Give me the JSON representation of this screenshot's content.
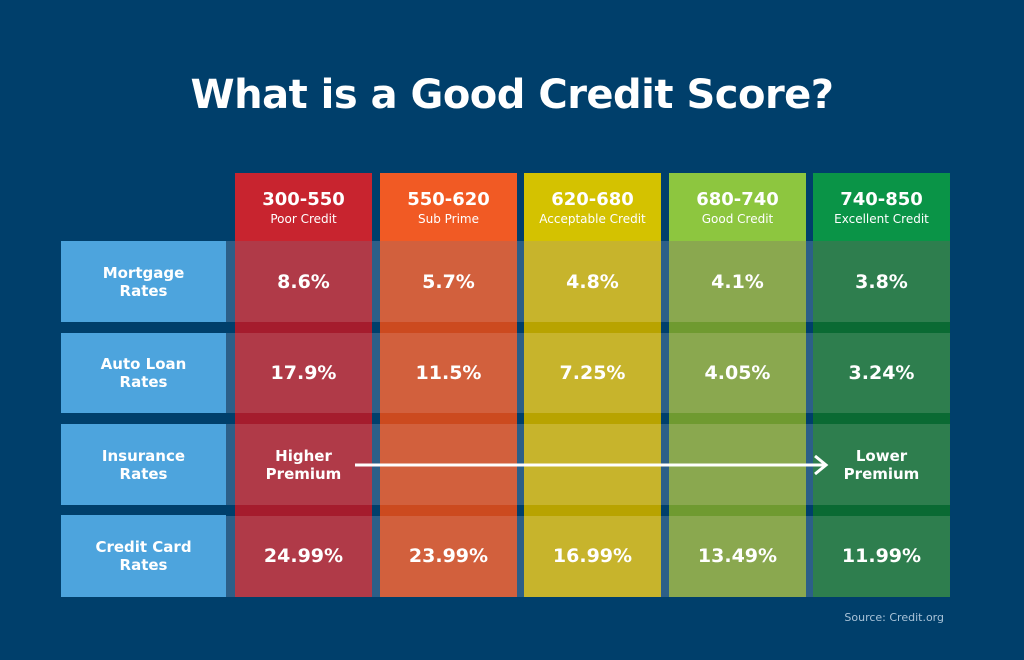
{
  "title": "What is a Good Credit Score?",
  "source": "Source: Credit.org",
  "chart_data": {
    "type": "table",
    "title": "What is a Good Credit Score?",
    "columns": [
      {
        "range": "300-550",
        "name": "Poor Credit",
        "header_color": "#c8242f",
        "body_color": "#b03a48",
        "sep_color": "#a51c2d"
      },
      {
        "range": "550-620",
        "name": "Sub Prime",
        "header_color": "#f15a24",
        "body_color": "#d2603d",
        "sep_color": "#cc4a1f"
      },
      {
        "range": "620-680",
        "name": "Acceptable Credit",
        "header_color": "#d4c200",
        "body_color": "#c7b42c",
        "sep_color": "#b8a300"
      },
      {
        "range": "680-740",
        "name": "Good Credit",
        "header_color": "#8dc63f",
        "body_color": "#8aa84f",
        "sep_color": "#6f9a30"
      },
      {
        "range": "740-850",
        "name": "Excellent Credit",
        "header_color": "#0a9447",
        "body_color": "#2e7e4e",
        "sep_color": "#0a6a33"
      }
    ],
    "rows": [
      {
        "label": "Mortgage Rates",
        "values": [
          "8.6%",
          "5.7%",
          "4.8%",
          "4.1%",
          "3.8%"
        ]
      },
      {
        "label": "Auto Loan Rates",
        "values": [
          "17.9%",
          "11.5%",
          "7.25%",
          "4.05%",
          "3.24%"
        ]
      },
      {
        "label": "Insurance Rates",
        "values": [
          "Higher Premium",
          "",
          "",
          "",
          "Lower Premium"
        ]
      },
      {
        "label": "Credit Card Rates",
        "values": [
          "24.99%",
          "23.99%",
          "16.99%",
          "13.49%",
          "11.99%"
        ]
      }
    ],
    "annotation": "arrow from Higher Premium to Lower Premium"
  }
}
